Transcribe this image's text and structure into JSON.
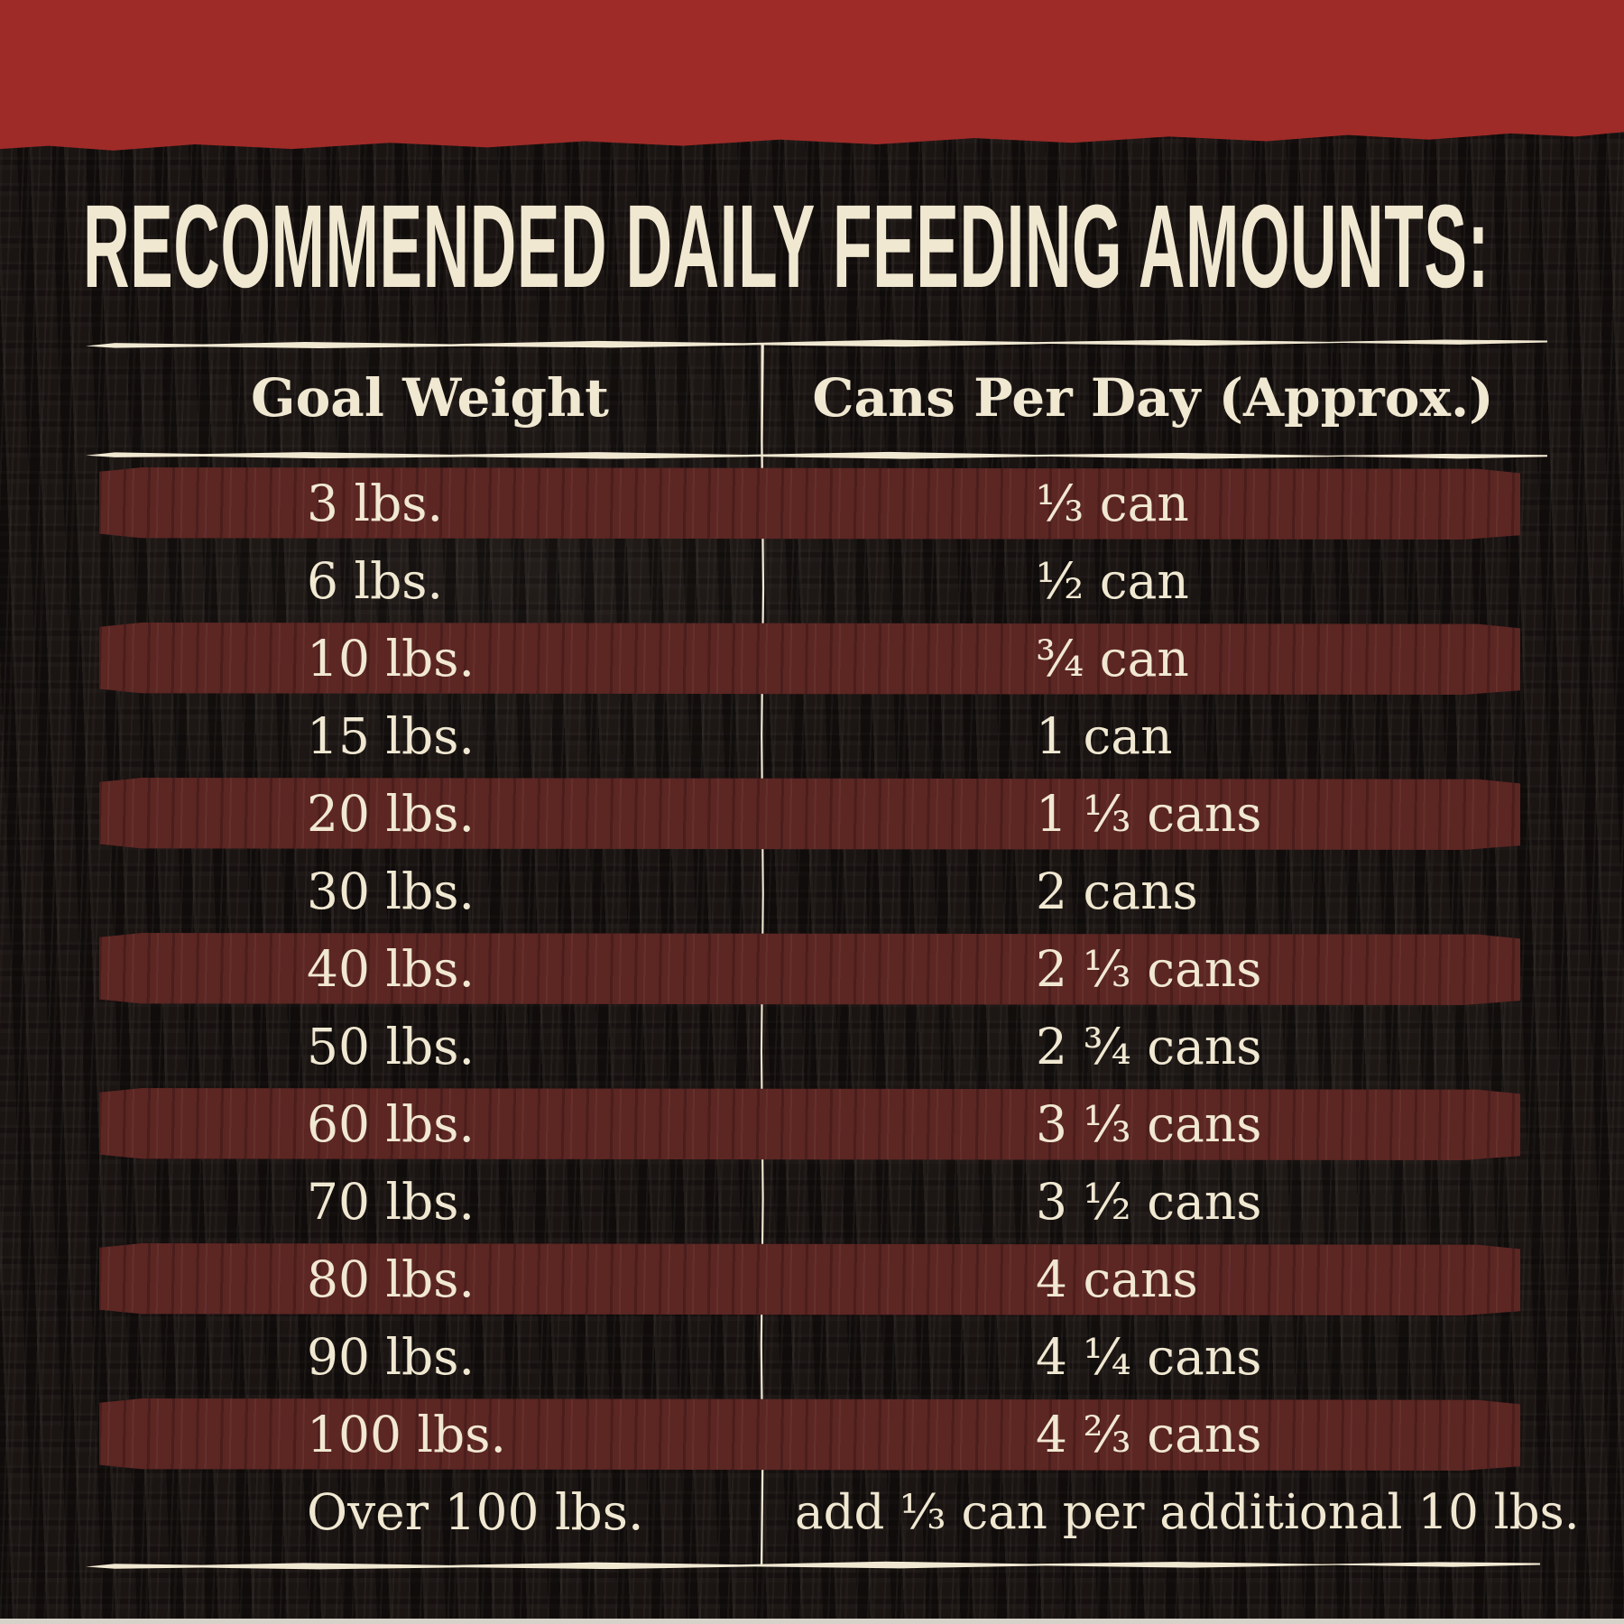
{
  "title": "RECOMMENDED DAILY FEEDING AMOUNTS:",
  "table": {
    "columns": {
      "goal_weight": "Goal Weight",
      "cans_per_day": "Cans Per Day (Approx.)"
    },
    "rows": [
      {
        "weight": "3 lbs.",
        "cans": "⅓ can"
      },
      {
        "weight": "6 lbs.",
        "cans": "½ can"
      },
      {
        "weight": "10 lbs.",
        "cans": "¾ can"
      },
      {
        "weight": "15 lbs.",
        "cans": "1 can"
      },
      {
        "weight": "20 lbs.",
        "cans": "1 ⅓ cans"
      },
      {
        "weight": "30 lbs.",
        "cans": "2 cans"
      },
      {
        "weight": "40 lbs.",
        "cans": "2 ⅓ cans"
      },
      {
        "weight": "50 lbs.",
        "cans": "2 ¾ cans"
      },
      {
        "weight": "60 lbs.",
        "cans": "3 ⅓ cans"
      },
      {
        "weight": "70 lbs.",
        "cans": "3 ½ cans"
      },
      {
        "weight": "80 lbs.",
        "cans": "4 cans"
      },
      {
        "weight": "90 lbs.",
        "cans": "4 ¼ cans"
      },
      {
        "weight": "100 lbs.",
        "cans": "4 ⅔ cans"
      },
      {
        "weight": "Over 100 lbs.",
        "cans": "add ⅓ can per additional 10 lbs."
      }
    ]
  },
  "colors": {
    "top_band_red": "#9e2b28",
    "stripe_maroon": "#5c2623",
    "background_dark": "#1a1412",
    "text_cream": "#f1e8d2"
  },
  "chart_data": {
    "type": "table",
    "title": "RECOMMENDED DAILY FEEDING AMOUNTS:",
    "columns": [
      "Goal Weight",
      "Cans Per Day (Approx.)"
    ],
    "rows": [
      [
        "3 lbs.",
        "⅓ can"
      ],
      [
        "6 lbs.",
        "½ can"
      ],
      [
        "10 lbs.",
        "¾ can"
      ],
      [
        "15 lbs.",
        "1 can"
      ],
      [
        "20 lbs.",
        "1 ⅓ cans"
      ],
      [
        "30 lbs.",
        "2 cans"
      ],
      [
        "40 lbs.",
        "2 ⅓ cans"
      ],
      [
        "50 lbs.",
        "2 ¾ cans"
      ],
      [
        "60 lbs.",
        "3 ⅓ cans"
      ],
      [
        "70 lbs.",
        "3 ½ cans"
      ],
      [
        "80 lbs.",
        "4 cans"
      ],
      [
        "90 lbs.",
        "4 ¼ cans"
      ],
      [
        "100 lbs.",
        "4 ⅔ cans"
      ],
      [
        "Over 100 lbs.",
        "add ⅓ can per additional 10 lbs."
      ]
    ]
  }
}
